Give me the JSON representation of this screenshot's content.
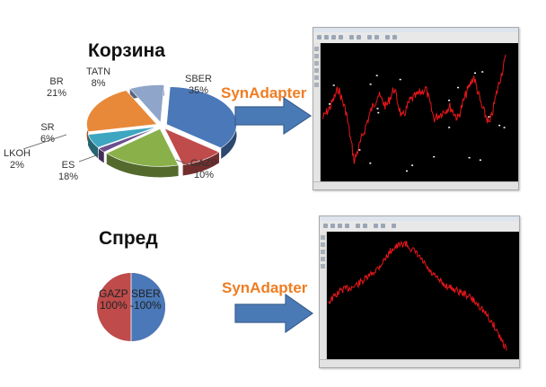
{
  "basket": {
    "title": "Корзина",
    "slices": [
      {
        "name": "SBER",
        "percent": "35%",
        "value": 35,
        "color": "#4a78b8"
      },
      {
        "name": "GAZP",
        "percent": "10%",
        "value": 10,
        "color": "#bf4b4b"
      },
      {
        "name": "ES",
        "percent": "18%",
        "value": 18,
        "color": "#8ab04a"
      },
      {
        "name": "LKOH",
        "percent": "2%",
        "value": 2,
        "color": "#6a4f8e"
      },
      {
        "name": "SR",
        "percent": "6%",
        "value": 6,
        "color": "#3ea6c0"
      },
      {
        "name": "BR",
        "percent": "21%",
        "value": 21,
        "color": "#e8893a"
      },
      {
        "name": "TATN",
        "percent": "8%",
        "value": 8,
        "color": "#8fa5c9"
      }
    ]
  },
  "spread": {
    "title": "Спред",
    "slices": [
      {
        "name": "SBER",
        "percent": "-100%",
        "value": 50,
        "color": "#4a78b8"
      },
      {
        "name": "GAZP",
        "percent": "100%",
        "value": 50,
        "color": "#bf4b4b"
      }
    ]
  },
  "adapter": {
    "label_top": "SynAdapter",
    "label_bottom": "SynAdapter",
    "accent_color": "#f07d22",
    "arrow_color": "#4a7ab6"
  },
  "charts": {
    "top": {
      "background": "#000000",
      "line_color": "#e8171b"
    },
    "bottom": {
      "background": "#000000",
      "line_color": "#e8171b"
    }
  }
}
